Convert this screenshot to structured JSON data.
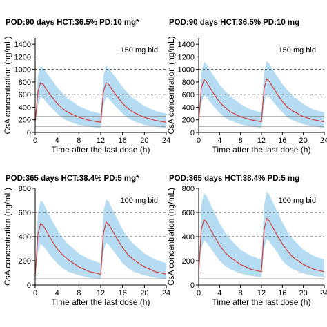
{
  "chart_data": [
    {
      "type": "line",
      "title": "POD:90 days HCT:36.5% PD:10 mg*",
      "annotation": "150 mg bid",
      "xlabel": "Time after the last dose (h)",
      "ylabel": "CsA concentration (ng/mL)",
      "xlim": [
        0,
        24
      ],
      "ylim": [
        0,
        1500
      ],
      "xticks": [
        0,
        4,
        8,
        12,
        16,
        20,
        24
      ],
      "yticks": [
        0,
        200,
        400,
        600,
        800,
        1000,
        1200,
        1400
      ],
      "ref_lines_solid": [
        100,
        250
      ],
      "ref_lines_dashed": [
        600,
        1000
      ],
      "band_label": "",
      "series": [
        {
          "role": "median",
          "x": [
            0,
            0.5,
            1,
            1.5,
            2,
            3,
            4,
            5,
            6,
            8,
            10,
            12,
            12.5,
            13,
            13.5,
            14,
            15,
            16,
            17,
            18,
            20,
            22,
            24
          ],
          "y": [
            160,
            650,
            790,
            760,
            690,
            570,
            460,
            380,
            320,
            240,
            190,
            160,
            650,
            790,
            760,
            690,
            570,
            460,
            380,
            320,
            240,
            190,
            160
          ]
        },
        {
          "role": "upper",
          "x": [
            0,
            0.5,
            1,
            1.5,
            2,
            3,
            4,
            5,
            6,
            8,
            10,
            12,
            12.5,
            13,
            13.5,
            14,
            15,
            16,
            17,
            18,
            20,
            22,
            24
          ],
          "y": [
            160,
            900,
            1060,
            1020,
            960,
            840,
            720,
            620,
            540,
            420,
            340,
            300,
            900,
            1060,
            1020,
            960,
            840,
            720,
            620,
            540,
            420,
            340,
            300
          ]
        },
        {
          "role": "lower",
          "x": [
            0,
            0.5,
            1,
            1.5,
            2,
            3,
            4,
            5,
            6,
            8,
            10,
            12,
            12.5,
            13,
            13.5,
            14,
            15,
            16,
            17,
            18,
            20,
            22,
            24
          ],
          "y": [
            160,
            430,
            560,
            540,
            480,
            390,
            300,
            230,
            180,
            120,
            90,
            70,
            430,
            560,
            540,
            480,
            390,
            300,
            230,
            180,
            120,
            90,
            70
          ]
        }
      ],
      "colors": {
        "median": "#d33c3c",
        "band": "#b5dcf2",
        "ref": "#444444"
      }
    },
    {
      "type": "line",
      "title": "POD:90 days HCT:36.5% PD:10 mg",
      "annotation": "150 mg bid",
      "xlabel": "Time after the last dose (h)",
      "ylabel": "CsA concentration (ng/mL)",
      "xlim": [
        0,
        24
      ],
      "ylim": [
        0,
        1500
      ],
      "xticks": [
        0,
        4,
        8,
        12,
        16,
        20,
        24
      ],
      "yticks": [
        0,
        200,
        400,
        600,
        800,
        1000,
        1200,
        1400
      ],
      "ref_lines_solid": [
        100,
        250
      ],
      "ref_lines_dashed": [
        600,
        1000
      ],
      "band_label": "",
      "series": [
        {
          "role": "median",
          "x": [
            0,
            0.5,
            1,
            1.5,
            2,
            3,
            4,
            5,
            6,
            8,
            10,
            12,
            12.5,
            13,
            13.5,
            14,
            15,
            16,
            17,
            18,
            20,
            22,
            24
          ],
          "y": [
            170,
            700,
            840,
            800,
            730,
            600,
            480,
            400,
            330,
            250,
            200,
            170,
            700,
            850,
            810,
            740,
            610,
            490,
            400,
            340,
            250,
            200,
            170
          ]
        },
        {
          "role": "upper",
          "x": [
            0,
            0.5,
            1,
            1.5,
            2,
            3,
            4,
            5,
            6,
            8,
            10,
            12,
            12.5,
            13,
            13.5,
            14,
            15,
            16,
            17,
            18,
            20,
            22,
            24
          ],
          "y": [
            170,
            950,
            1120,
            1080,
            1010,
            880,
            760,
            660,
            580,
            450,
            360,
            320,
            950,
            1130,
            1090,
            1020,
            890,
            770,
            670,
            580,
            450,
            360,
            320
          ]
        },
        {
          "role": "lower",
          "x": [
            0,
            0.5,
            1,
            1.5,
            2,
            3,
            4,
            5,
            6,
            8,
            10,
            12,
            12.5,
            13,
            13.5,
            14,
            15,
            16,
            17,
            18,
            20,
            22,
            24
          ],
          "y": [
            170,
            460,
            590,
            560,
            500,
            400,
            310,
            240,
            190,
            130,
            95,
            75,
            460,
            600,
            570,
            510,
            410,
            320,
            240,
            190,
            130,
            95,
            75
          ]
        }
      ],
      "colors": {
        "median": "#d33c3c",
        "band": "#b5dcf2",
        "ref": "#444444"
      }
    },
    {
      "type": "line",
      "title": "POD:365 days HCT:38.4% PD:5 mg*",
      "annotation": "100 mg bid",
      "xlabel": "Time after the last dose (h)",
      "ylabel": "CsA concentration (ng/mL)",
      "xlim": [
        0,
        24
      ],
      "ylim": [
        0,
        800
      ],
      "xticks": [
        0,
        4,
        8,
        12,
        16,
        20,
        24
      ],
      "yticks": [
        0,
        200,
        400,
        600,
        800
      ],
      "ref_lines_solid": [
        50,
        100
      ],
      "ref_lines_dashed": [
        400,
        600
      ],
      "band_label": "",
      "series": [
        {
          "role": "median",
          "x": [
            0,
            0.5,
            1,
            1.5,
            2,
            3,
            4,
            5,
            6,
            8,
            10,
            12,
            12.5,
            13,
            13.5,
            14,
            15,
            16,
            17,
            18,
            20,
            22,
            24
          ],
          "y": [
            70,
            420,
            510,
            490,
            450,
            370,
            300,
            250,
            210,
            150,
            110,
            90,
            430,
            520,
            500,
            460,
            380,
            310,
            250,
            210,
            150,
            110,
            90
          ]
        },
        {
          "role": "upper",
          "x": [
            0,
            0.5,
            1,
            1.5,
            2,
            3,
            4,
            5,
            6,
            8,
            10,
            12,
            12.5,
            13,
            13.5,
            14,
            15,
            16,
            17,
            18,
            20,
            22,
            24
          ],
          "y": [
            70,
            600,
            700,
            680,
            630,
            540,
            460,
            390,
            340,
            260,
            210,
            180,
            610,
            710,
            690,
            640,
            550,
            460,
            390,
            340,
            260,
            210,
            180
          ]
        },
        {
          "role": "lower",
          "x": [
            0,
            0.5,
            1,
            1.5,
            2,
            3,
            4,
            5,
            6,
            8,
            10,
            12,
            12.5,
            13,
            13.5,
            14,
            15,
            16,
            17,
            18,
            20,
            22,
            24
          ],
          "y": [
            70,
            270,
            340,
            320,
            290,
            230,
            180,
            140,
            110,
            80,
            60,
            50,
            280,
            350,
            330,
            300,
            240,
            180,
            140,
            110,
            80,
            60,
            50
          ]
        }
      ],
      "colors": {
        "median": "#d33c3c",
        "band": "#b5dcf2",
        "ref": "#444444"
      }
    },
    {
      "type": "line",
      "title": "POD:365 days HCT:38.4% PD:5 mg",
      "annotation": "100 mg bid",
      "xlabel": "Time after the last dose (h)",
      "ylabel": "CsA concentration (ng/mL)",
      "xlim": [
        0,
        24
      ],
      "ylim": [
        0,
        800
      ],
      "xticks": [
        0,
        4,
        8,
        12,
        16,
        20,
        24
      ],
      "yticks": [
        0,
        200,
        400,
        600,
        800
      ],
      "ref_lines_solid": [
        50,
        100
      ],
      "ref_lines_dashed": [
        400,
        600
      ],
      "band_label": "",
      "series": [
        {
          "role": "median",
          "x": [
            0,
            0.5,
            1,
            1.5,
            2,
            3,
            4,
            5,
            6,
            8,
            10,
            12,
            12.5,
            13,
            13.5,
            14,
            15,
            16,
            17,
            18,
            20,
            22,
            24
          ],
          "y": [
            90,
            460,
            540,
            520,
            480,
            400,
            330,
            270,
            230,
            170,
            130,
            110,
            460,
            550,
            530,
            490,
            410,
            340,
            280,
            230,
            170,
            130,
            110
          ]
        },
        {
          "role": "upper",
          "x": [
            0,
            0.5,
            1,
            1.5,
            2,
            3,
            4,
            5,
            6,
            8,
            10,
            12,
            12.5,
            13,
            13.5,
            14,
            15,
            16,
            17,
            18,
            20,
            22,
            24
          ],
          "y": [
            90,
            660,
            760,
            740,
            690,
            600,
            510,
            440,
            380,
            290,
            240,
            210,
            660,
            770,
            750,
            700,
            610,
            520,
            440,
            380,
            290,
            240,
            210
          ]
        },
        {
          "role": "lower",
          "x": [
            0,
            0.5,
            1,
            1.5,
            2,
            3,
            4,
            5,
            6,
            8,
            10,
            12,
            12.5,
            13,
            13.5,
            14,
            15,
            16,
            17,
            18,
            20,
            22,
            24
          ],
          "y": [
            90,
            300,
            370,
            350,
            320,
            260,
            200,
            160,
            130,
            95,
            75,
            65,
            300,
            380,
            360,
            330,
            270,
            200,
            160,
            130,
            95,
            75,
            65
          ]
        }
      ],
      "colors": {
        "median": "#d33c3c",
        "band": "#b5dcf2",
        "ref": "#444444"
      }
    }
  ]
}
